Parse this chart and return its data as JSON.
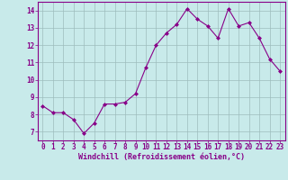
{
  "x": [
    0,
    1,
    2,
    3,
    4,
    5,
    6,
    7,
    8,
    9,
    10,
    11,
    12,
    13,
    14,
    15,
    16,
    17,
    18,
    19,
    20,
    21,
    22,
    23
  ],
  "y": [
    8.5,
    8.1,
    8.1,
    7.7,
    6.9,
    7.5,
    8.6,
    8.6,
    8.7,
    9.2,
    10.7,
    12.0,
    12.7,
    13.2,
    14.1,
    13.5,
    13.1,
    12.4,
    14.1,
    13.1,
    13.3,
    12.4,
    11.2,
    10.5
  ],
  "line_color": "#880088",
  "marker": "D",
  "marker_size": 2.0,
  "bg_color": "#c8eaea",
  "grid_color": "#9dbdbd",
  "xlabel": "Windchill (Refroidissement éolien,°C)",
  "ylim": [
    6.5,
    14.5
  ],
  "xlim": [
    -0.5,
    23.5
  ],
  "yticks": [
    7,
    8,
    9,
    10,
    11,
    12,
    13,
    14
  ],
  "xticks": [
    0,
    1,
    2,
    3,
    4,
    5,
    6,
    7,
    8,
    9,
    10,
    11,
    12,
    13,
    14,
    15,
    16,
    17,
    18,
    19,
    20,
    21,
    22,
    23
  ],
  "tick_color": "#880088",
  "label_fontsize": 6.0,
  "tick_fontsize": 5.5,
  "font_family": "monospace",
  "linewidth": 0.8
}
